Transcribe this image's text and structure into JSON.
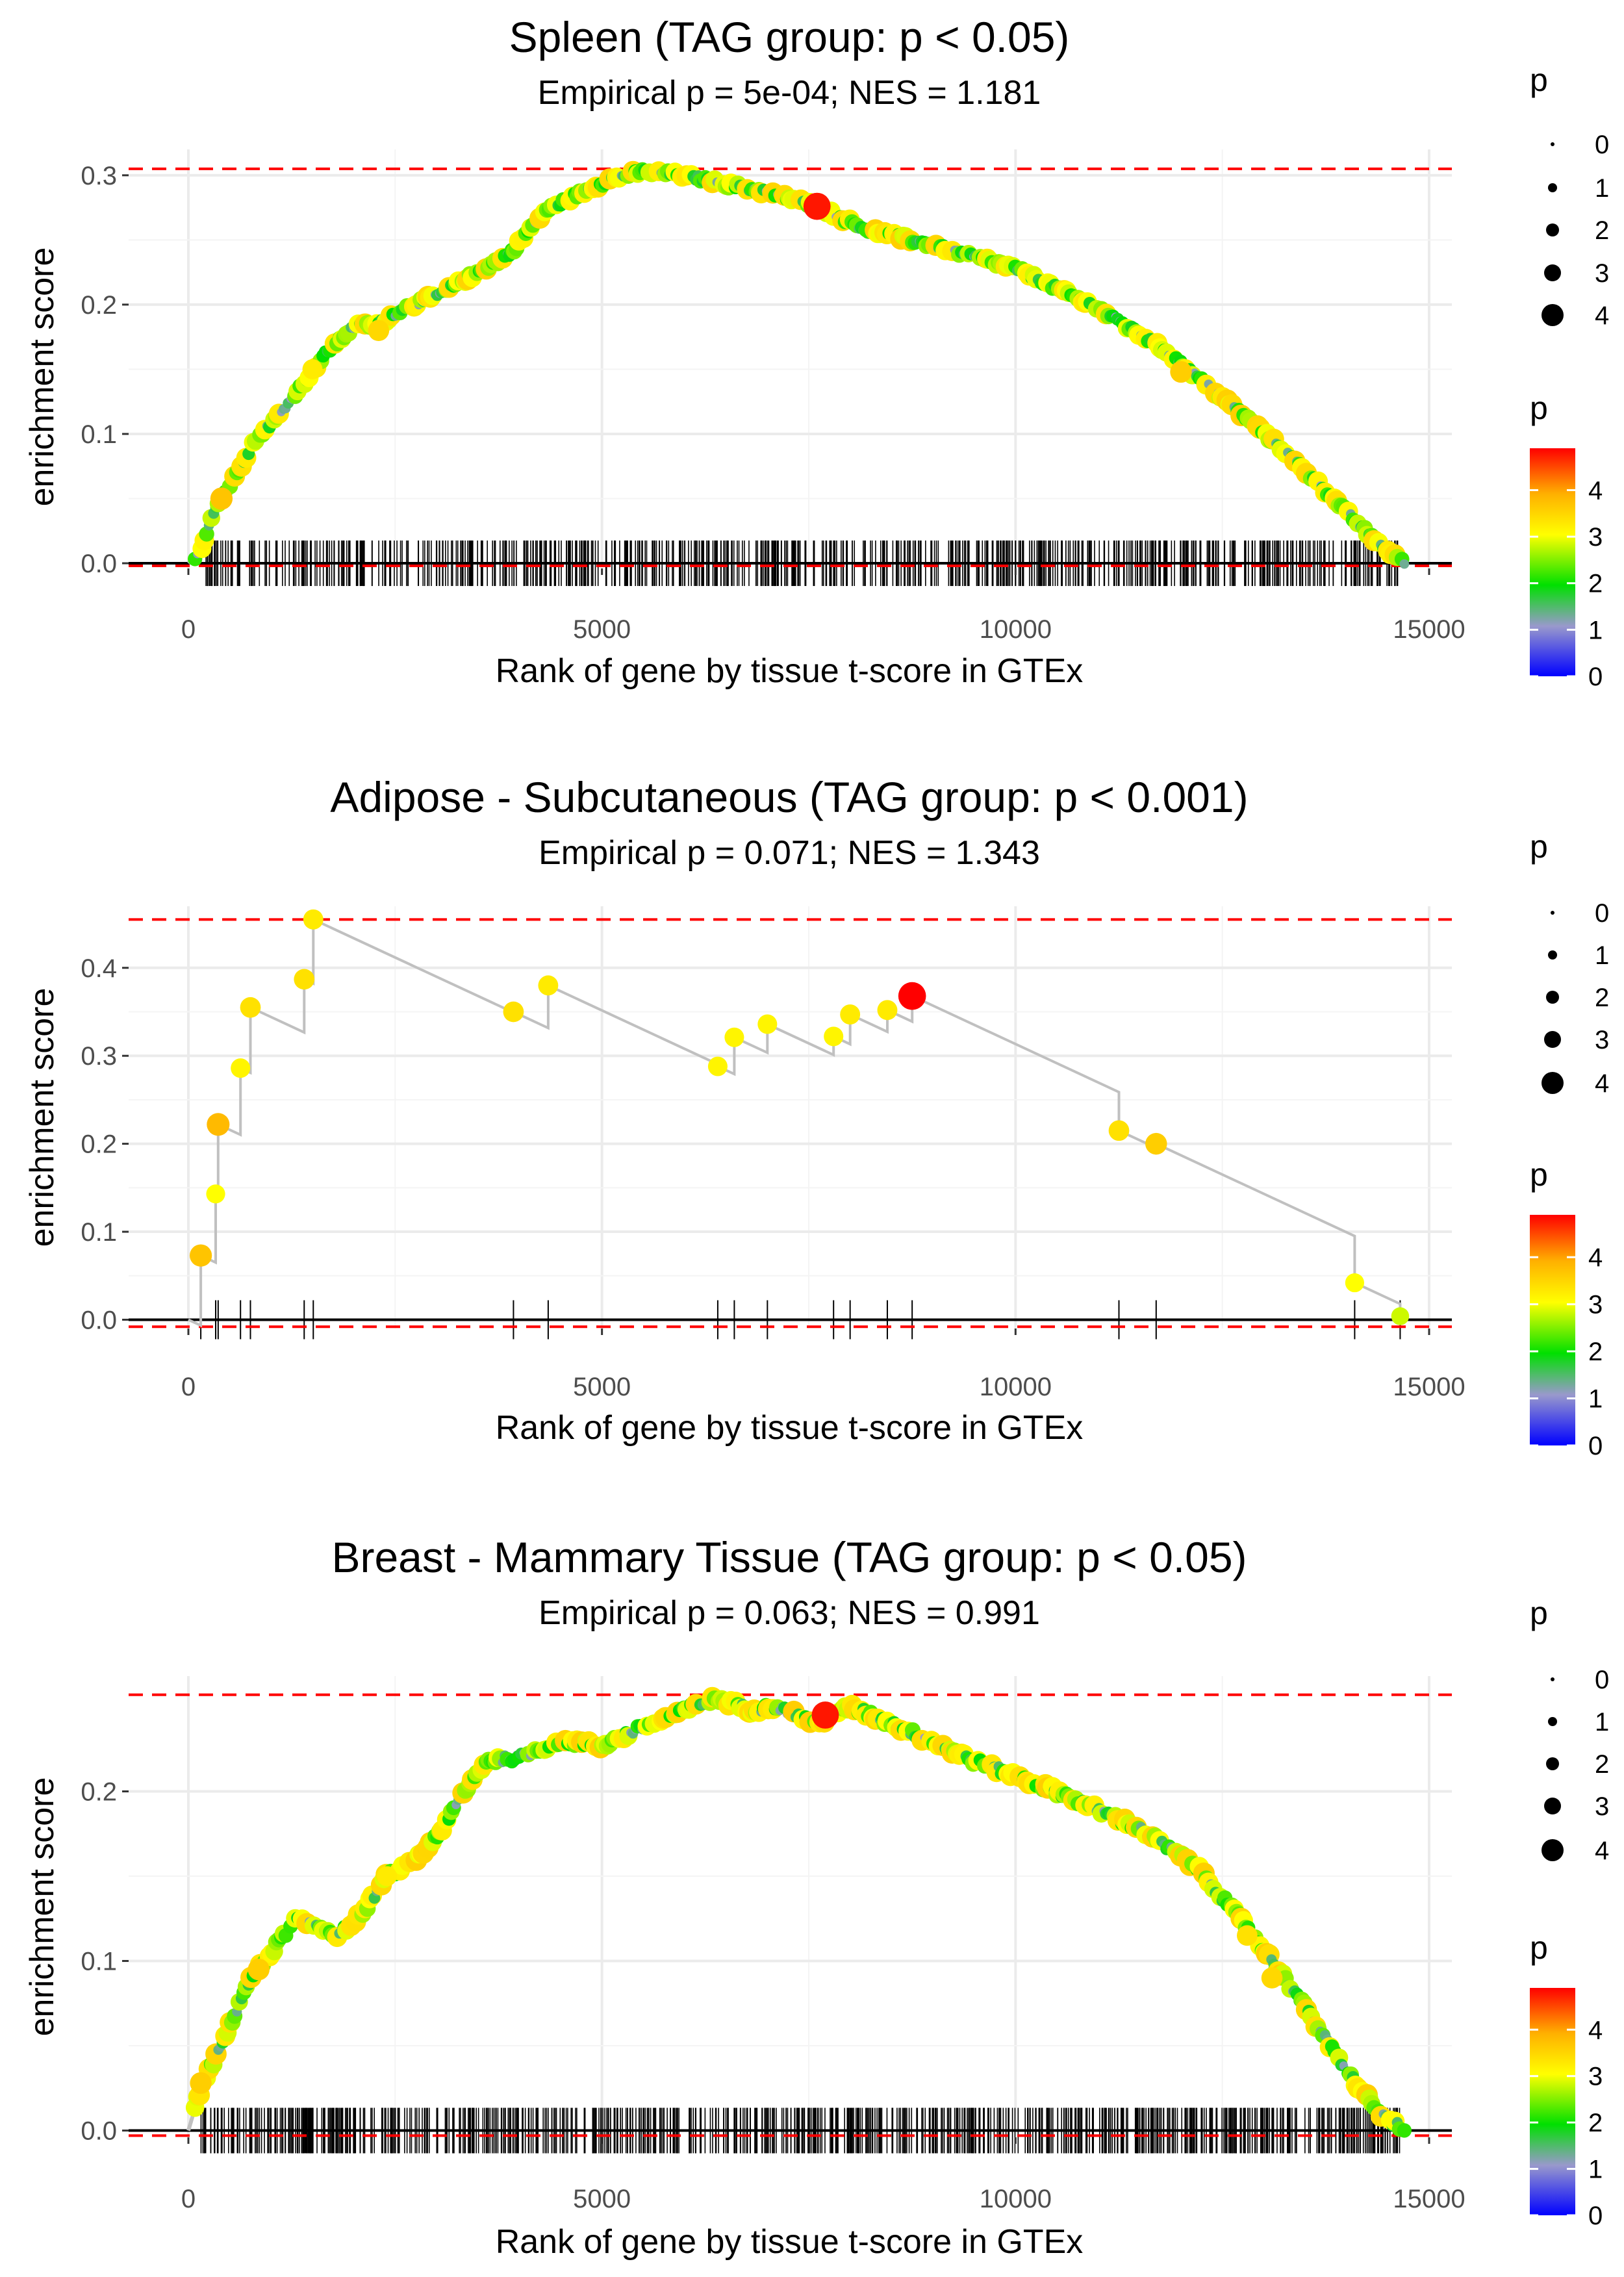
{
  "colors": {
    "ref_line": "#ff0000",
    "zero_line": "#000000",
    "grid": "#ebebeb",
    "path": "#c0c0c0",
    "rug": "#000000",
    "gradient": [
      "#0000ff",
      "#9999cc",
      "#00e000",
      "#ffff00",
      "#ffb000",
      "#ff0000"
    ]
  },
  "chart_data": [
    {
      "type": "line",
      "title": "Spleen (TAG group: p < 0.05)",
      "subtitle": "Empirical p = 5e-04; NES = 1.181",
      "xlabel": "Rank of gene by tissue t-score in GTEx",
      "ylabel": "enrichment score",
      "xlim": [
        0,
        15000
      ],
      "xticks": [
        0,
        5000,
        10000,
        15000
      ],
      "xtick_labels": [
        "0",
        "5000",
        "10000",
        "15000"
      ],
      "ylim": [
        -0.004,
        0.32
      ],
      "yticks": [
        0.0,
        0.1,
        0.2,
        0.3
      ],
      "ytick_labels": [
        "0.0",
        "0.1",
        "0.2",
        "0.3"
      ],
      "max_es": 0.305,
      "min_es": -0.002,
      "x_end": 14700,
      "curve": [
        [
          0,
          0.0
        ],
        [
          150,
          0.01
        ],
        [
          300,
          0.04
        ],
        [
          500,
          0.06
        ],
        [
          800,
          0.095
        ],
        [
          1100,
          0.115
        ],
        [
          1400,
          0.14
        ],
        [
          1700,
          0.165
        ],
        [
          2000,
          0.183
        ],
        [
          2300,
          0.185
        ],
        [
          2600,
          0.197
        ],
        [
          3000,
          0.207
        ],
        [
          3500,
          0.225
        ],
        [
          3900,
          0.24
        ],
        [
          4300,
          0.272
        ],
        [
          4700,
          0.285
        ],
        [
          5100,
          0.297
        ],
        [
          5500,
          0.303
        ],
        [
          6000,
          0.3
        ],
        [
          6500,
          0.293
        ],
        [
          7000,
          0.287
        ],
        [
          7600,
          0.276
        ],
        [
          8200,
          0.258
        ],
        [
          9000,
          0.246
        ],
        [
          10000,
          0.228
        ],
        [
          11000,
          0.197
        ],
        [
          11800,
          0.165
        ],
        [
          12500,
          0.128
        ],
        [
          13200,
          0.09
        ],
        [
          13800,
          0.053
        ],
        [
          14300,
          0.02
        ],
        [
          14700,
          0.0
        ]
      ],
      "rug_count": 700,
      "highlights": [
        [
          400,
          0.05,
          3.6
        ],
        [
          1500,
          0.15,
          3.2
        ],
        [
          2300,
          0.18,
          3.4
        ],
        [
          7600,
          0.276,
          4.5
        ],
        [
          12000,
          0.148,
          3.5
        ]
      ],
      "legend_size": {
        "title": "p",
        "levels": [
          "0",
          "1",
          "2",
          "3",
          "4"
        ]
      },
      "legend_color": {
        "title": "p",
        "ticks": [
          "0",
          "1",
          "2",
          "3",
          "4"
        ]
      }
    },
    {
      "type": "line",
      "title": "Adipose - Subcutaneous (TAG group: p < 0.001)",
      "subtitle": "Empirical p = 0.071; NES = 1.343",
      "xlabel": "Rank of gene by tissue t-score in GTEx",
      "ylabel": "enrichment score",
      "xlim": [
        0,
        15000
      ],
      "xticks": [
        0,
        5000,
        10000,
        15000
      ],
      "xtick_labels": [
        "0",
        "5000",
        "10000",
        "15000"
      ],
      "ylim": [
        -0.01,
        0.47
      ],
      "yticks": [
        0.0,
        0.1,
        0.2,
        0.3,
        0.4
      ],
      "ytick_labels": [
        "0.0",
        "0.1",
        "0.2",
        "0.3",
        "0.4"
      ],
      "max_es": 0.455,
      "min_es": -0.008,
      "x_end": 14700,
      "steps": [
        [
          150,
          0.073,
          3.6
        ],
        [
          330,
          0.143,
          3.0
        ],
        [
          360,
          0.222,
          3.7
        ],
        [
          630,
          0.286,
          3.1
        ],
        [
          750,
          0.355,
          3.3
        ],
        [
          1400,
          0.387,
          3.3
        ],
        [
          1510,
          0.455,
          3.2
        ],
        [
          3930,
          0.35,
          3.3
        ],
        [
          4350,
          0.38,
          3.2
        ],
        [
          6400,
          0.288,
          3.1
        ],
        [
          6600,
          0.321,
          3.1
        ],
        [
          7000,
          0.336,
          3.1
        ],
        [
          7800,
          0.322,
          3.1
        ],
        [
          8000,
          0.347,
          3.2
        ],
        [
          8450,
          0.352,
          3.2
        ],
        [
          8750,
          0.368,
          4.6
        ],
        [
          11250,
          0.215,
          3.3
        ],
        [
          11700,
          0.2,
          3.5
        ],
        [
          14100,
          0.042,
          3.0
        ],
        [
          14650,
          0.004,
          2.8
        ]
      ],
      "legend_size": {
        "title": "p",
        "levels": [
          "0",
          "1",
          "2",
          "3",
          "4"
        ]
      },
      "legend_color": {
        "title": "p",
        "ticks": [
          "0",
          "1",
          "2",
          "3",
          "4"
        ]
      }
    },
    {
      "type": "line",
      "title": "Breast - Mammary Tissue (TAG group: p < 0.05)",
      "subtitle": "Empirical p = 0.063; NES = 0.991",
      "xlabel": "Rank of gene by tissue t-score in GTEx",
      "ylabel": "enrichment score",
      "xlim": [
        0,
        15000
      ],
      "xticks": [
        0,
        5000,
        10000,
        15000
      ],
      "xtick_labels": [
        "0",
        "5000",
        "10000",
        "15000"
      ],
      "ylim": [
        -0.004,
        0.268
      ],
      "yticks": [
        0.0,
        0.1,
        0.2
      ],
      "ytick_labels": [
        "0.0",
        "0.1",
        "0.2"
      ],
      "max_es": 0.257,
      "min_es": -0.003,
      "x_end": 14700,
      "curve": [
        [
          0,
          0.0
        ],
        [
          150,
          0.025
        ],
        [
          400,
          0.05
        ],
        [
          700,
          0.085
        ],
        [
          1000,
          0.105
        ],
        [
          1300,
          0.125
        ],
        [
          1600,
          0.12
        ],
        [
          1800,
          0.115
        ],
        [
          2100,
          0.128
        ],
        [
          2400,
          0.15
        ],
        [
          2800,
          0.162
        ],
        [
          3100,
          0.18
        ],
        [
          3300,
          0.197
        ],
        [
          3600,
          0.218
        ],
        [
          4000,
          0.22
        ],
        [
          4500,
          0.23
        ],
        [
          5000,
          0.227
        ],
        [
          5500,
          0.238
        ],
        [
          6000,
          0.248
        ],
        [
          6400,
          0.255
        ],
        [
          6800,
          0.248
        ],
        [
          7100,
          0.25
        ],
        [
          7600,
          0.24
        ],
        [
          8000,
          0.25
        ],
        [
          8500,
          0.24
        ],
        [
          9500,
          0.218
        ],
        [
          10500,
          0.2
        ],
        [
          11500,
          0.178
        ],
        [
          12200,
          0.155
        ],
        [
          12800,
          0.12
        ],
        [
          13400,
          0.08
        ],
        [
          14000,
          0.035
        ],
        [
          14400,
          0.01
        ],
        [
          14700,
          0.0
        ]
      ],
      "rug_count": 820,
      "highlights": [
        [
          150,
          0.028,
          3.5
        ],
        [
          850,
          0.095,
          3.5
        ],
        [
          2400,
          0.15,
          3.2
        ],
        [
          7700,
          0.245,
          4.5
        ],
        [
          12800,
          0.115,
          3.3
        ],
        [
          13100,
          0.09,
          3.4
        ]
      ],
      "legend_size": {
        "title": "p",
        "levels": [
          "0",
          "1",
          "2",
          "3",
          "4"
        ]
      },
      "legend_color": {
        "title": "p",
        "ticks": [
          "0",
          "1",
          "2",
          "3",
          "4"
        ]
      }
    }
  ]
}
